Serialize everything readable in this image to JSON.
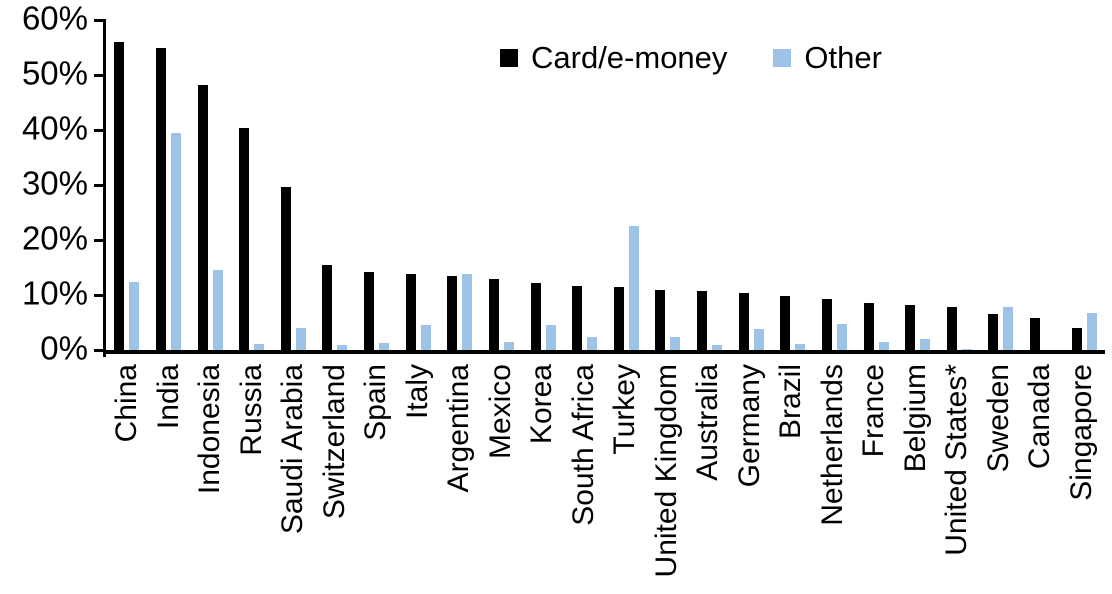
{
  "chart_data": {
    "type": "bar",
    "title": "",
    "xlabel": "",
    "ylabel": "",
    "ylim": [
      0,
      60
    ],
    "y_ticks": [
      "0%",
      "10%",
      "20%",
      "30%",
      "40%",
      "50%",
      "60%"
    ],
    "grid": false,
    "legend_position": "top-center",
    "categories": [
      "China",
      "India",
      "Indonesia",
      "Russia",
      "Saudi Arabia",
      "Switzerland",
      "Spain",
      "Italy",
      "Argentina",
      "Mexico",
      "Korea",
      "South Africa",
      "Turkey",
      "United Kingdom",
      "Australia",
      "Germany",
      "Brazil",
      "Netherlands",
      "France",
      "Belgium",
      "United States*",
      "Sweden",
      "Canada",
      "Singapore"
    ],
    "series": [
      {
        "name": "Card/e-money",
        "color": "#000000",
        "values": [
          56,
          55,
          48.2,
          40.3,
          29.7,
          15.4,
          14.1,
          13.9,
          13.4,
          12.9,
          12.2,
          11.6,
          11.5,
          11.0,
          10.7,
          10.4,
          9.9,
          9.2,
          8.5,
          8.1,
          7.9,
          6.5,
          5.9,
          4.0
        ]
      },
      {
        "name": "Other",
        "color": "#9DC3E6",
        "values": [
          12.4,
          39.5,
          14.5,
          1.1,
          4.0,
          0.9,
          1.2,
          4.6,
          13.8,
          1.4,
          4.6,
          2.4,
          22.5,
          2.3,
          1.0,
          3.9,
          1.1,
          4.7,
          1.5,
          2.0,
          0.2,
          7.9,
          0,
          6.8
        ]
      }
    ]
  },
  "axis_color": "#000000",
  "background_color": "#ffffff"
}
